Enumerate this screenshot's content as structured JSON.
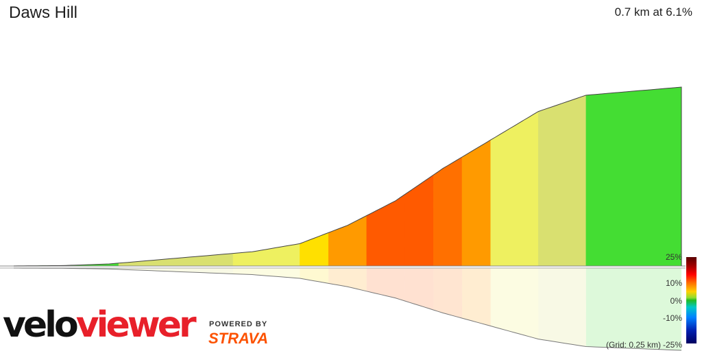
{
  "header": {
    "title": "Daws Hill",
    "summary": "0.7 km at 6.1%"
  },
  "branding": {
    "velo": "velo",
    "viewer": "viewer",
    "powered_by": "POWERED BY",
    "strava": "STRAVA"
  },
  "gradient_scale": {
    "labels": [
      "25%",
      "10%",
      "0%",
      "-10%",
      "-25%"
    ],
    "grid_note": "(Grid: 0.25 km)"
  },
  "colors": {
    "green": "#44dd33",
    "yellow_green": "#dddd66",
    "yellow": "#ffe000",
    "orange": "#ff9a00",
    "red_orange": "#ff5a00"
  },
  "chart_data": {
    "type": "area",
    "distance_km": [
      0.0,
      0.05,
      0.1,
      0.15,
      0.2,
      0.25,
      0.3,
      0.35,
      0.4,
      0.45,
      0.5,
      0.55,
      0.6,
      0.65,
      0.7
    ],
    "relative_elevation_m": [
      0,
      0.1,
      0.5,
      1.5,
      2.5,
      3.5,
      5.5,
      10,
      16,
      24,
      31,
      38,
      42,
      43,
      44
    ],
    "segment_gradients": [
      {
        "from_km": 0.0,
        "to_km": 0.11,
        "gradient_pct": 1
      },
      {
        "from_km": 0.11,
        "to_km": 0.23,
        "gradient_pct": 3
      },
      {
        "from_km": 0.23,
        "to_km": 0.3,
        "gradient_pct": 5
      },
      {
        "from_km": 0.3,
        "to_km": 0.33,
        "gradient_pct": 7
      },
      {
        "from_km": 0.33,
        "to_km": 0.37,
        "gradient_pct": 10
      },
      {
        "from_km": 0.37,
        "to_km": 0.41,
        "gradient_pct": 13
      },
      {
        "from_km": 0.41,
        "to_km": 0.44,
        "gradient_pct": 14
      },
      {
        "from_km": 0.44,
        "to_km": 0.47,
        "gradient_pct": 12
      },
      {
        "from_km": 0.47,
        "to_km": 0.5,
        "gradient_pct": 9
      },
      {
        "from_km": 0.5,
        "to_km": 0.55,
        "gradient_pct": 5
      },
      {
        "from_km": 0.55,
        "to_km": 0.6,
        "gradient_pct": 3
      },
      {
        "from_km": 0.6,
        "to_km": 0.7,
        "gradient_pct": 1
      }
    ],
    "grid_km": 0.25,
    "gradient_scale_range_pct": [
      -25,
      25
    ]
  }
}
